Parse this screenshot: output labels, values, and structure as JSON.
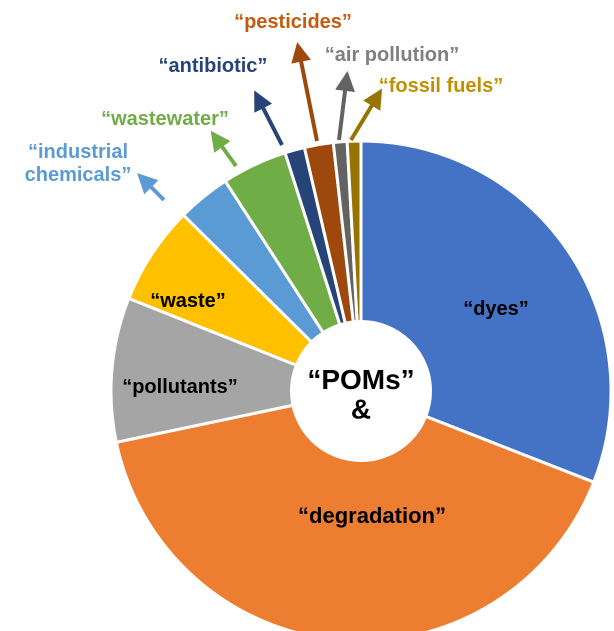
{
  "chart_data": {
    "type": "pie",
    "center_text": [
      "“POMs”",
      "&"
    ],
    "slices": [
      {
        "label": "“dyes”",
        "value": 31.5,
        "color": "#4472C4",
        "label_color": "#000000"
      },
      {
        "label": "“degradation”",
        "value": 41.5,
        "color": "#ED7D31",
        "label_color": "#000000"
      },
      {
        "label": "“pollutants”",
        "value": 9.5,
        "color": "#A5A5A5",
        "label_color": "#000000"
      },
      {
        "label": "“waste”",
        "value": 6.5,
        "color": "#FFC000",
        "label_color": "#000000"
      },
      {
        "label": [
          "“industrial",
          "chemicals”"
        ],
        "value": 3.5,
        "color": "#5B9BD5",
        "label_color": "#5B9BD5"
      },
      {
        "label": "“wastewater”",
        "value": 4.3,
        "color": "#70AD47",
        "label_color": "#70AD47"
      },
      {
        "label": "“antibiotic”",
        "value": 1.3,
        "color": "#264478",
        "label_color": "#264478"
      },
      {
        "label": "“pesticides”",
        "value": 1.9,
        "color": "#9E480E",
        "label_color": "#C55A11"
      },
      {
        "label": "“air pollution”",
        "value": 0.9,
        "color": "#636363",
        "label_color": "#7F7F7F"
      },
      {
        "label": "“fossil fuels”",
        "value": 0.9,
        "color": "#997300",
        "label_color": "#BF9000"
      }
    ]
  }
}
